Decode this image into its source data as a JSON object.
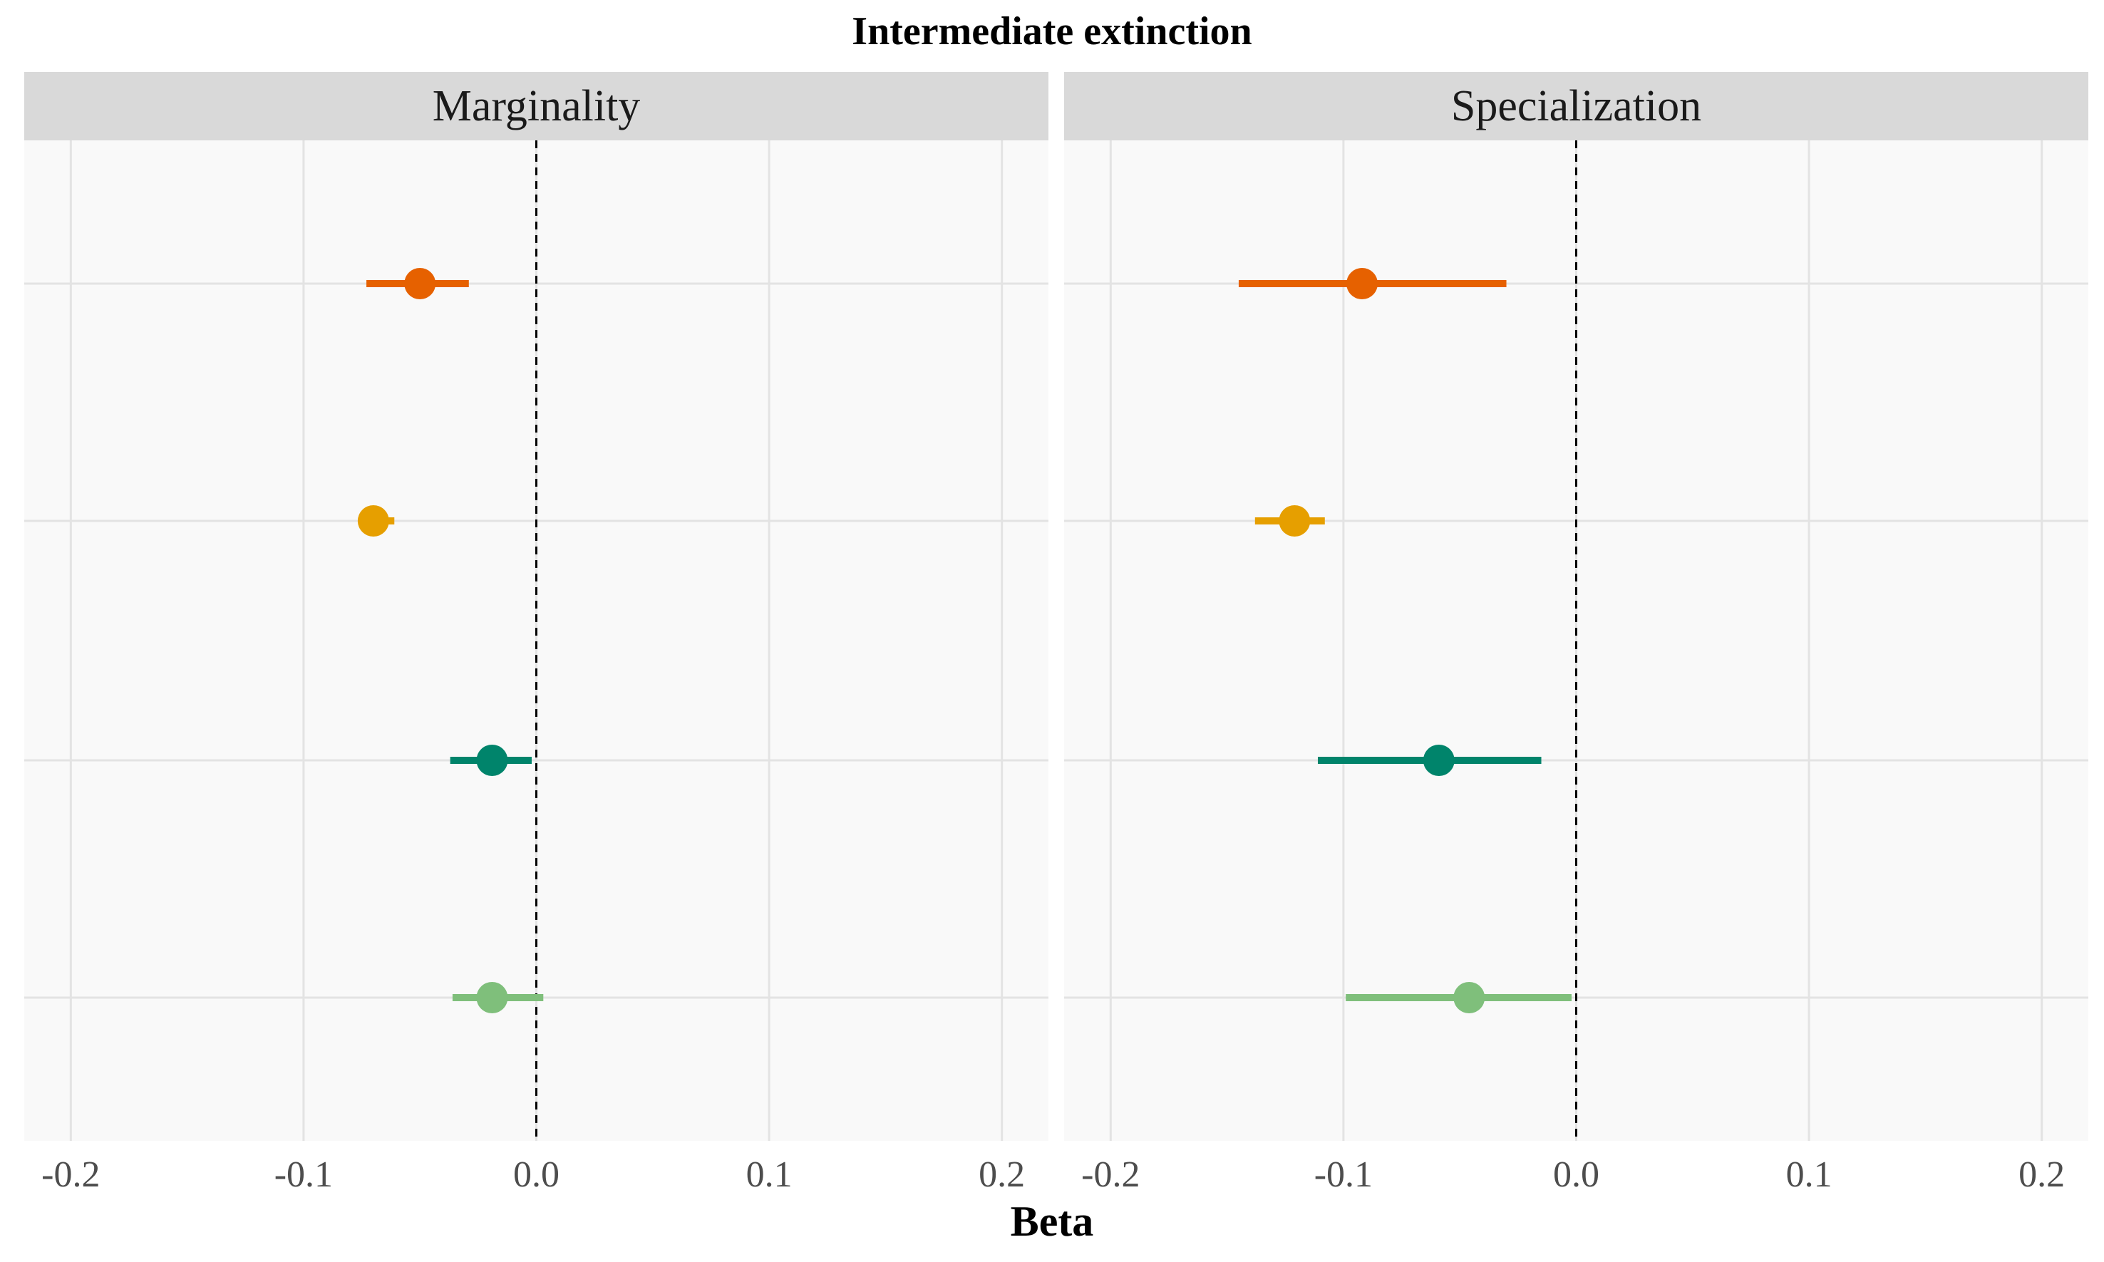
{
  "title": "Intermediate extinction",
  "xlabel": "Beta",
  "colors": {
    "panel_bg": "#f9f9f9",
    "strip_bg": "#d9d9d9",
    "grid": "#e3e3e3",
    "reference_line": "#000000"
  },
  "chart_data": {
    "type": "scatter",
    "subtype": "coefficient-plot with intervals",
    "title": "Intermediate extinction",
    "xlabel": "Beta",
    "ylabel": "",
    "xlim": [
      -0.22,
      0.22
    ],
    "x_ticks": [
      -0.2,
      -0.1,
      0.0,
      0.1,
      0.2
    ],
    "x_tick_labels": [
      "-0.2",
      "-0.1",
      "0.0",
      "0.1",
      "0.2"
    ],
    "reference_line": {
      "x": 0.0,
      "style": "dashed"
    },
    "grid": true,
    "legend": "none",
    "rows": 4,
    "panels": [
      {
        "label": "Marginality",
        "points": [
          {
            "row": 1,
            "color": "#e66100",
            "estimate": -0.05,
            "low": -0.073,
            "high": -0.029
          },
          {
            "row": 2,
            "color": "#e69f00",
            "estimate": -0.07,
            "low": -0.073,
            "high": -0.061
          },
          {
            "row": 3,
            "color": "#00846b",
            "estimate": -0.019,
            "low": -0.037,
            "high": -0.002
          },
          {
            "row": 4,
            "color": "#7fbf7b",
            "estimate": -0.019,
            "low": -0.036,
            "high": 0.003
          }
        ]
      },
      {
        "label": "Specialization",
        "points": [
          {
            "row": 1,
            "color": "#e66100",
            "estimate": -0.092,
            "low": -0.145,
            "high": -0.03
          },
          {
            "row": 2,
            "color": "#e69f00",
            "estimate": -0.121,
            "low": -0.138,
            "high": -0.108
          },
          {
            "row": 3,
            "color": "#00846b",
            "estimate": -0.059,
            "low": -0.111,
            "high": -0.015
          },
          {
            "row": 4,
            "color": "#7fbf7b",
            "estimate": -0.046,
            "low": -0.099,
            "high": -0.002
          }
        ]
      }
    ]
  }
}
